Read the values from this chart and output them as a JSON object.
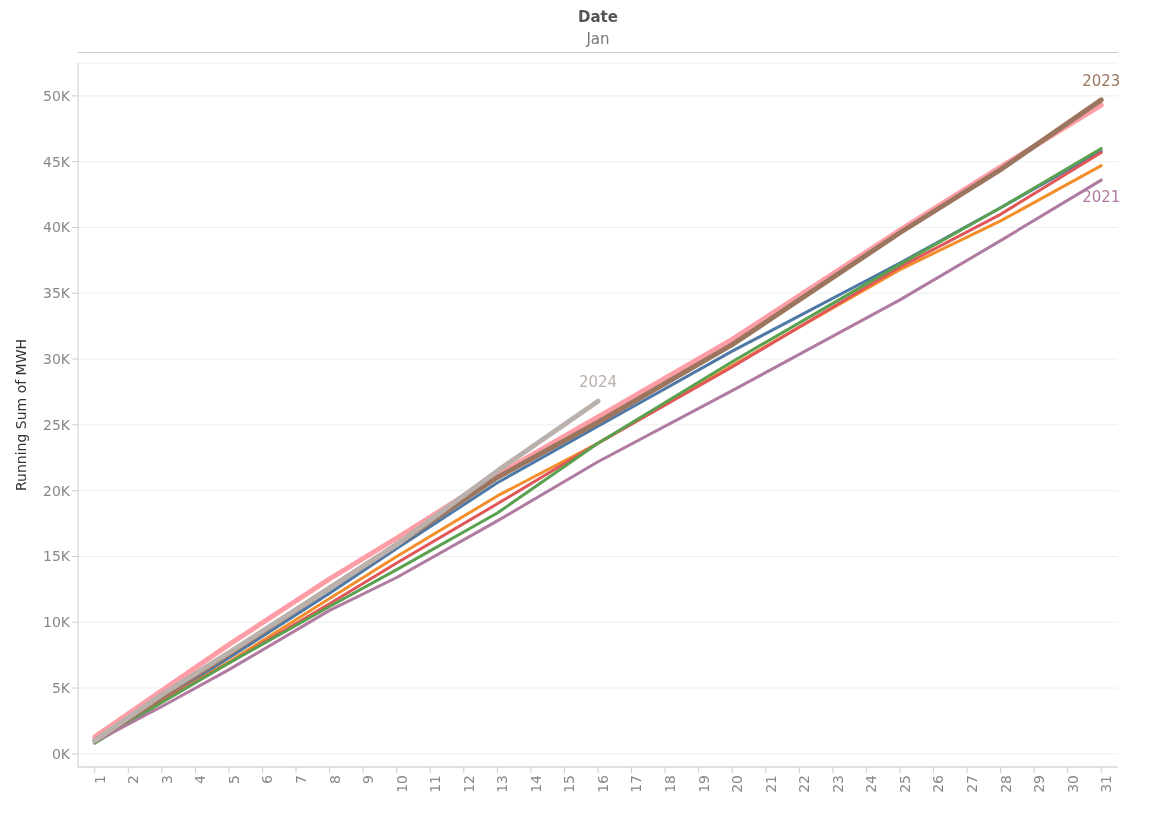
{
  "chart_data": {
    "type": "line",
    "xlabel": "Date",
    "annotations": [
      "Jan"
    ],
    "ylabel": "Running Sum of MWH",
    "grid": "y",
    "legend": false,
    "marker": "none",
    "line_style": "solid",
    "xlim": [
      0.5,
      31.5
    ],
    "xticks": [
      1,
      2,
      3,
      4,
      5,
      6,
      7,
      8,
      9,
      10,
      11,
      12,
      13,
      14,
      15,
      16,
      17,
      18,
      19,
      20,
      21,
      22,
      23,
      24,
      25,
      26,
      27,
      28,
      29,
      30,
      31
    ],
    "ylim": [
      -1000,
      52500
    ],
    "yticks": [
      {
        "value": 0,
        "label": "0K"
      },
      {
        "value": 5000,
        "label": "5K"
      },
      {
        "value": 10000,
        "label": "10K"
      },
      {
        "value": 15000,
        "label": "15K"
      },
      {
        "value": 20000,
        "label": "20K"
      },
      {
        "value": 25000,
        "label": "25K"
      },
      {
        "value": 30000,
        "label": "30K"
      },
      {
        "value": 35000,
        "label": "35K"
      },
      {
        "value": 40000,
        "label": "40K"
      },
      {
        "value": 45000,
        "label": "45K"
      },
      {
        "value": 50000,
        "label": "50K"
      }
    ],
    "series": [
      {
        "color": "#4e79a7",
        "x": [
          1,
          3,
          5,
          8,
          10,
          13,
          16,
          20,
          25,
          28,
          31
        ],
        "values": [
          900,
          4000,
          7300,
          12200,
          15600,
          20600,
          24900,
          30600,
          37300,
          41500,
          45800
        ]
      },
      {
        "color": "#f28e2b",
        "x": [
          1,
          3,
          5,
          8,
          10,
          13,
          16,
          20,
          25,
          28,
          31
        ],
        "values": [
          900,
          4000,
          7000,
          11800,
          15000,
          19600,
          23600,
          29500,
          36800,
          40500,
          44700
        ]
      },
      {
        "color": "#e15759",
        "x": [
          1,
          3,
          5,
          8,
          10,
          13,
          16,
          20,
          25,
          28,
          31
        ],
        "values": [
          900,
          4000,
          6900,
          11400,
          14500,
          19000,
          23600,
          29400,
          37000,
          41000,
          45700
        ]
      },
      {
        "color": "#59a14f",
        "x": [
          1,
          3,
          5,
          8,
          10,
          13,
          16,
          20,
          25,
          28,
          31
        ],
        "values": [
          800,
          3900,
          6900,
          11200,
          14000,
          18300,
          23600,
          29800,
          37200,
          41500,
          46000
        ]
      },
      {
        "name": "2021",
        "color": "#b07aa1",
        "x": [
          1,
          3,
          5,
          8,
          10,
          13,
          16,
          20,
          25,
          28,
          31
        ],
        "values": [
          900,
          3600,
          6400,
          10900,
          13400,
          17700,
          22200,
          27600,
          34500,
          39000,
          43600
        ]
      },
      {
        "color": "#ff9da7",
        "x": [
          1,
          3,
          5,
          8,
          10,
          13,
          16,
          20,
          25,
          28,
          31
        ],
        "values": [
          1300,
          4800,
          8300,
          13300,
          16400,
          21200,
          25600,
          31500,
          39800,
          44600,
          49300
        ]
      },
      {
        "name": "2023",
        "color": "#9c755f",
        "x": [
          1,
          3,
          5,
          8,
          10,
          13,
          16,
          20,
          25,
          28,
          31
        ],
        "values": [
          1000,
          4300,
          7600,
          12600,
          15900,
          21000,
          25200,
          31100,
          39600,
          44400,
          49700
        ]
      },
      {
        "name": "2024",
        "color": "#bab0ac",
        "x": [
          1,
          3,
          5,
          8,
          10,
          13,
          16
        ],
        "values": [
          1000,
          4500,
          7700,
          12600,
          15900,
          21500,
          26800
        ]
      }
    ]
  }
}
